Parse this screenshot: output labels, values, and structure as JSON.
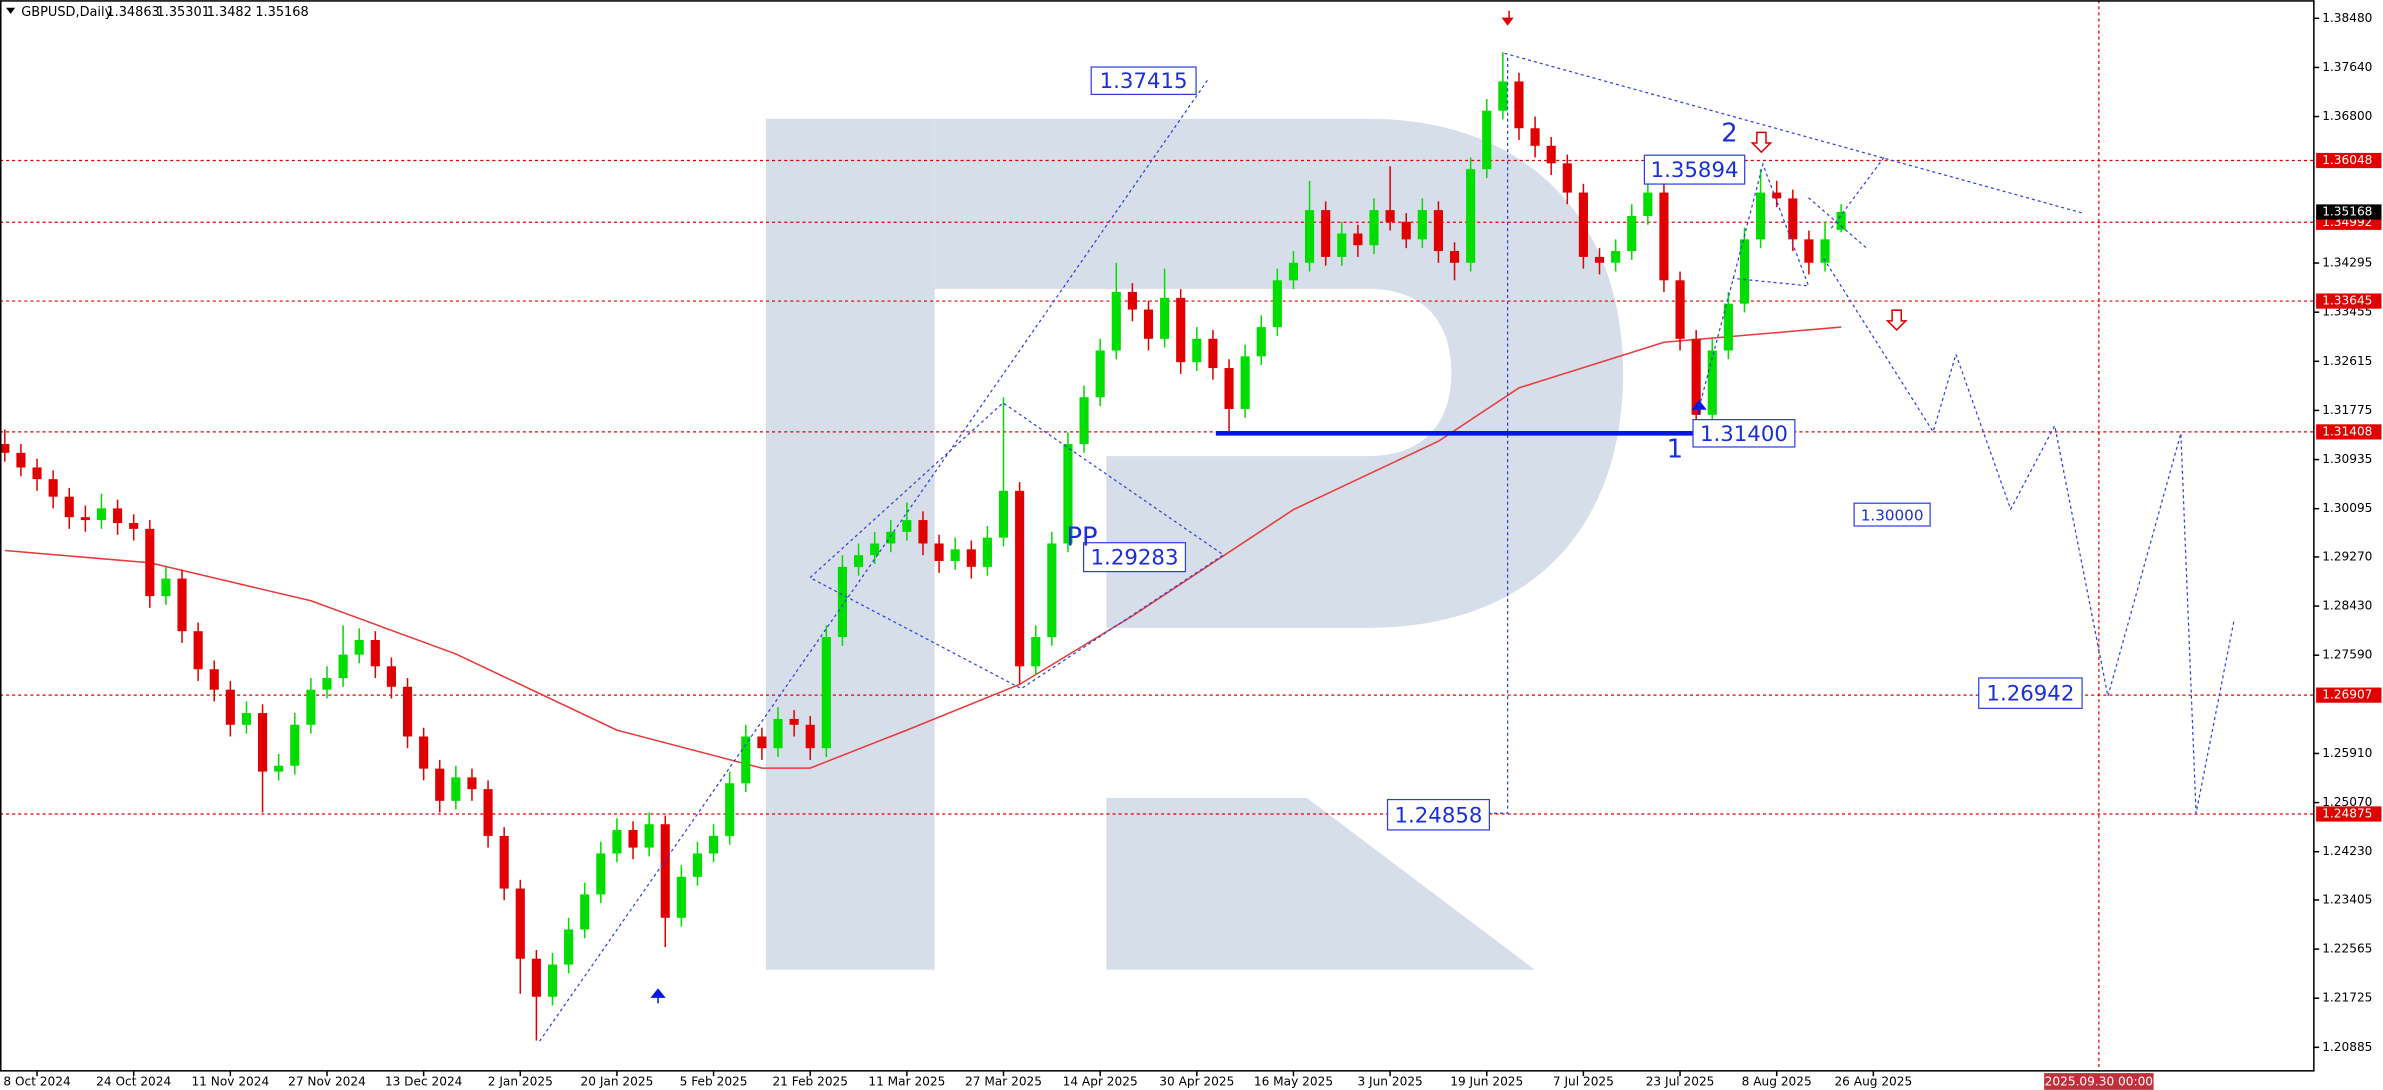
{
  "chart_data": {
    "type": "candlestick",
    "title": "GBPUSD,Daily",
    "up_color": "#00dd00",
    "down_color": "#e00000",
    "ohlc": [
      [
        1.312,
        1.3145,
        1.309,
        1.3105
      ],
      [
        1.3105,
        1.312,
        1.3065,
        1.308
      ],
      [
        1.308,
        1.3095,
        1.304,
        1.306
      ],
      [
        1.306,
        1.3075,
        1.301,
        1.303
      ],
      [
        1.303,
        1.3045,
        1.2975,
        1.2995
      ],
      [
        1.2995,
        1.3015,
        1.297,
        1.299
      ],
      [
        1.299,
        1.3035,
        1.2975,
        1.301
      ],
      [
        1.301,
        1.3025,
        1.2965,
        1.2985
      ],
      [
        1.2985,
        1.3,
        1.2955,
        1.2975
      ],
      [
        1.2975,
        1.299,
        1.284,
        1.286
      ],
      [
        1.286,
        1.291,
        1.2845,
        1.289
      ],
      [
        1.289,
        1.2905,
        1.278,
        1.28
      ],
      [
        1.28,
        1.2815,
        1.2715,
        1.2735
      ],
      [
        1.2735,
        1.275,
        1.268,
        1.27
      ],
      [
        1.27,
        1.2715,
        1.262,
        1.264
      ],
      [
        1.264,
        1.268,
        1.2625,
        1.266
      ],
      [
        1.266,
        1.2675,
        1.249,
        1.256
      ],
      [
        1.256,
        1.259,
        1.2545,
        1.257
      ],
      [
        1.257,
        1.266,
        1.2555,
        1.264
      ],
      [
        1.264,
        1.272,
        1.2625,
        1.27
      ],
      [
        1.27,
        1.274,
        1.2685,
        1.272
      ],
      [
        1.272,
        1.281,
        1.2705,
        1.276
      ],
      [
        1.276,
        1.2805,
        1.2745,
        1.2785
      ],
      [
        1.2785,
        1.28,
        1.272,
        1.274
      ],
      [
        1.274,
        1.2755,
        1.2685,
        1.2705
      ],
      [
        1.2705,
        1.272,
        1.26,
        1.262
      ],
      [
        1.262,
        1.2635,
        1.2545,
        1.2565
      ],
      [
        1.2565,
        1.258,
        1.249,
        1.251
      ],
      [
        1.251,
        1.257,
        1.2495,
        1.255
      ],
      [
        1.255,
        1.2565,
        1.251,
        1.253
      ],
      [
        1.253,
        1.2545,
        1.243,
        1.245
      ],
      [
        1.245,
        1.2465,
        1.234,
        1.236
      ],
      [
        1.236,
        1.2375,
        1.218,
        1.224
      ],
      [
        1.224,
        1.2255,
        1.21,
        1.2175
      ],
      [
        1.2175,
        1.225,
        1.216,
        1.223
      ],
      [
        1.223,
        1.231,
        1.2215,
        1.229
      ],
      [
        1.229,
        1.237,
        1.2275,
        1.235
      ],
      [
        1.235,
        1.244,
        1.2335,
        1.242
      ],
      [
        1.242,
        1.248,
        1.2405,
        1.246
      ],
      [
        1.246,
        1.2475,
        1.241,
        1.243
      ],
      [
        1.243,
        1.249,
        1.2415,
        1.247
      ],
      [
        1.247,
        1.2485,
        1.226,
        1.231
      ],
      [
        1.231,
        1.24,
        1.2295,
        1.238
      ],
      [
        1.238,
        1.244,
        1.2365,
        1.242
      ],
      [
        1.242,
        1.247,
        1.2405,
        1.245
      ],
      [
        1.245,
        1.256,
        1.2435,
        1.254
      ],
      [
        1.254,
        1.264,
        1.2525,
        1.262
      ],
      [
        1.262,
        1.2635,
        1.258,
        1.26
      ],
      [
        1.26,
        1.267,
        1.2585,
        1.265
      ],
      [
        1.265,
        1.2665,
        1.262,
        1.264
      ],
      [
        1.264,
        1.2655,
        1.258,
        1.26
      ],
      [
        1.26,
        1.281,
        1.2585,
        1.279
      ],
      [
        1.279,
        1.293,
        1.2775,
        1.291
      ],
      [
        1.291,
        1.295,
        1.2895,
        1.293
      ],
      [
        1.293,
        1.297,
        1.2915,
        1.295
      ],
      [
        1.295,
        1.299,
        1.2935,
        1.297
      ],
      [
        1.297,
        1.302,
        1.2955,
        1.299
      ],
      [
        1.299,
        1.3005,
        1.293,
        1.295
      ],
      [
        1.295,
        1.2965,
        1.29,
        1.292
      ],
      [
        1.292,
        1.296,
        1.2905,
        1.294
      ],
      [
        1.294,
        1.2955,
        1.289,
        1.291
      ],
      [
        1.291,
        1.298,
        1.2895,
        1.296
      ],
      [
        1.296,
        1.32,
        1.2945,
        1.304
      ],
      [
        1.304,
        1.3055,
        1.271,
        1.274
      ],
      [
        1.274,
        1.281,
        1.2725,
        1.279
      ],
      [
        1.279,
        1.297,
        1.2775,
        1.295
      ],
      [
        1.295,
        1.314,
        1.2935,
        1.312
      ],
      [
        1.312,
        1.322,
        1.3105,
        1.32
      ],
      [
        1.32,
        1.33,
        1.3185,
        1.328
      ],
      [
        1.328,
        1.343,
        1.3265,
        1.338
      ],
      [
        1.338,
        1.3395,
        1.333,
        1.335
      ],
      [
        1.335,
        1.3365,
        1.328,
        1.33
      ],
      [
        1.33,
        1.342,
        1.3285,
        1.337
      ],
      [
        1.337,
        1.3385,
        1.324,
        1.326
      ],
      [
        1.326,
        1.332,
        1.3245,
        1.33
      ],
      [
        1.33,
        1.3315,
        1.323,
        1.325
      ],
      [
        1.325,
        1.3265,
        1.314,
        1.318
      ],
      [
        1.318,
        1.329,
        1.3165,
        1.327
      ],
      [
        1.327,
        1.334,
        1.3255,
        1.332
      ],
      [
        1.332,
        1.342,
        1.3305,
        1.34
      ],
      [
        1.34,
        1.345,
        1.3385,
        1.343
      ],
      [
        1.343,
        1.357,
        1.3415,
        1.352
      ],
      [
        1.352,
        1.3535,
        1.3425,
        1.344
      ],
      [
        1.344,
        1.35,
        1.3425,
        1.348
      ],
      [
        1.348,
        1.3495,
        1.344,
        1.346
      ],
      [
        1.346,
        1.354,
        1.3445,
        1.352
      ],
      [
        1.352,
        1.3595,
        1.3485,
        1.35
      ],
      [
        1.35,
        1.3515,
        1.3455,
        1.347
      ],
      [
        1.347,
        1.354,
        1.3455,
        1.352
      ],
      [
        1.352,
        1.3535,
        1.343,
        1.345
      ],
      [
        1.345,
        1.3465,
        1.34,
        1.343
      ],
      [
        1.343,
        1.361,
        1.3415,
        1.359
      ],
      [
        1.359,
        1.371,
        1.3575,
        1.369
      ],
      [
        1.369,
        1.379,
        1.3675,
        1.374
      ],
      [
        1.374,
        1.3755,
        1.364,
        1.366
      ],
      [
        1.366,
        1.368,
        1.361,
        1.363
      ],
      [
        1.363,
        1.3645,
        1.358,
        1.36
      ],
      [
        1.36,
        1.3615,
        1.353,
        1.355
      ],
      [
        1.355,
        1.3565,
        1.342,
        1.344
      ],
      [
        1.344,
        1.3455,
        1.341,
        1.343
      ],
      [
        1.343,
        1.347,
        1.3415,
        1.345
      ],
      [
        1.345,
        1.353,
        1.3435,
        1.351
      ],
      [
        1.351,
        1.359,
        1.3495,
        1.355
      ],
      [
        1.355,
        1.3565,
        1.338,
        1.34
      ],
      [
        1.34,
        1.3415,
        1.328,
        1.33
      ],
      [
        1.33,
        1.3315,
        1.314,
        1.317
      ],
      [
        1.317,
        1.33,
        1.3155,
        1.328
      ],
      [
        1.328,
        1.338,
        1.3265,
        1.336
      ],
      [
        1.336,
        1.349,
        1.3345,
        1.347
      ],
      [
        1.347,
        1.359,
        1.3455,
        1.355
      ],
      [
        1.355,
        1.357,
        1.3525,
        1.354
      ],
      [
        1.354,
        1.3555,
        1.345,
        1.347
      ],
      [
        1.347,
        1.3485,
        1.341,
        1.343
      ],
      [
        1.343,
        1.35,
        1.3415,
        1.347
      ],
      [
        1.34863,
        1.35301,
        1.3482,
        1.35168
      ]
    ],
    "ma": {
      "color": "#e83a3a",
      "x": [
        0,
        9,
        19,
        28,
        38,
        47,
        50,
        56,
        63,
        70,
        80,
        89,
        94,
        103,
        114
      ],
      "values": [
        1.2938,
        1.2917,
        1.2852,
        1.2761,
        1.2631,
        1.2566,
        1.2566,
        1.2631,
        1.2709,
        1.2826,
        1.3008,
        1.3125,
        1.3216,
        1.3294,
        1.332
      ]
    },
    "xlim": [
      -0.3,
      143.3
    ],
    "xticks": [
      {
        "value": 2,
        "label": "8 Oct 2024"
      },
      {
        "value": 8,
        "label": "24 Oct 2024"
      },
      {
        "value": 14,
        "label": "11 Nov 2024"
      },
      {
        "value": 20,
        "label": "27 Nov 2024"
      },
      {
        "value": 26,
        "label": "13 Dec 2024"
      },
      {
        "value": 32,
        "label": "2 Jan 2025"
      },
      {
        "value": 38,
        "label": "20 Jan 2025"
      },
      {
        "value": 44,
        "label": "5 Feb 2025"
      },
      {
        "value": 50,
        "label": "21 Feb 2025"
      },
      {
        "value": 56,
        "label": "11 Mar 2025"
      },
      {
        "value": 62,
        "label": "27 Mar 2025"
      },
      {
        "value": 68,
        "label": "14 Apr 2025"
      },
      {
        "value": 74,
        "label": "30 Apr 2025"
      },
      {
        "value": 80,
        "label": "16 May 2025"
      },
      {
        "value": 86,
        "label": "3 Jun 2025"
      },
      {
        "value": 92,
        "label": "19 Jun 2025"
      },
      {
        "value": 98,
        "label": "7 Jul 2025"
      },
      {
        "value": 104,
        "label": "23 Jul 2025"
      },
      {
        "value": 110,
        "label": "8 Aug 2025"
      },
      {
        "value": 116,
        "label": "26 Aug 2025"
      }
    ],
    "cursor": {
      "value": 130,
      "label": "2025.09.30 00:00"
    },
    "ylim": [
      1.2047,
      1.3879
    ],
    "yticks": [
      {
        "value": 1.3848,
        "label": "1.38480"
      },
      {
        "value": 1.3764,
        "label": "1.37640"
      },
      {
        "value": 1.368,
        "label": "1.36800"
      },
      1.34295,
      1.33455,
      1.32615,
      1.31775,
      1.30935,
      1.30095,
      {
        "value": 1.2927,
        "label": "1.29270"
      },
      {
        "value": 1.2843,
        "label": "1.28430"
      },
      {
        "value": 1.2759,
        "label": "1.27590"
      },
      {
        "value": 1.2591,
        "label": "1.25910"
      },
      {
        "value": 1.2507,
        "label": "1.25070"
      },
      {
        "value": 1.2423,
        "label": "1.24230"
      },
      1.23405,
      1.22565,
      1.21725,
      1.20885
    ],
    "levels": [
      1.36048,
      1.34992,
      1.33645,
      1.31408,
      1.26907,
      1.24875
    ],
    "level_color": "#e00000",
    "annotations": [
      "1.37415",
      "1.29283",
      "1.31400",
      "1.35894",
      "1.26942",
      "1.24858",
      "1.30000"
    ],
    "wave_labels": [
      "2",
      "1",
      "PP"
    ]
  }
}
